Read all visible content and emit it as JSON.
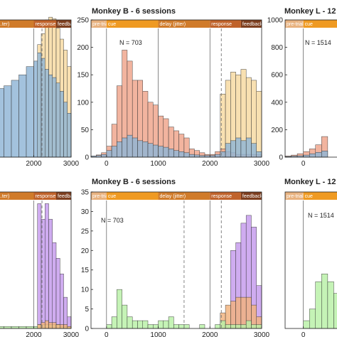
{
  "colors": {
    "pretrial": "#e8b27f",
    "cue": "#ef9a22",
    "delay": "#d07b2a",
    "response": "#c0632b",
    "feedback": "#7e3f1f",
    "salmon": "#efa48a",
    "yellow": "#f6d9a0",
    "blue": "#8fb4d6",
    "green": "#b8f0a6",
    "purple": "#c49aed",
    "orange": "#f2b27c"
  },
  "icons": [
    "dashed-line-marker"
  ],
  "chart_data": [
    {
      "type": "bar",
      "panel": "top-left",
      "title": "",
      "epoch_labels": [
        "...ter)",
        "response",
        "feedback"
      ],
      "xticks": [
        2000,
        3000
      ],
      "xlim": [
        1000,
        3000
      ],
      "ylim": [
        0,
        250
      ],
      "x_edges": [
        1000,
        1200,
        1400,
        1600,
        1800,
        2000,
        2100,
        2200,
        2300,
        2400,
        2500,
        2600,
        2700,
        2800,
        2900,
        3000
      ],
      "series": [
        {
          "color": "yellow",
          "values": [
            0,
            0,
            0,
            0,
            0,
            0,
            205,
            225,
            250,
            255,
            252,
            235,
            215,
            195,
            165
          ]
        },
        {
          "color": "blue",
          "values": [
            125,
            130,
            140,
            150,
            165,
            175,
            190,
            180,
            160,
            150,
            145,
            135,
            120,
            100,
            80
          ]
        }
      ],
      "annotations": []
    },
    {
      "type": "bar",
      "panel": "top-middle",
      "title": "Monkey B - 6 sessions",
      "epoch_labels": [
        "pre-trial",
        "cue",
        "delay (jitter)",
        "response",
        "feedback"
      ],
      "xticks": [
        0,
        1000,
        2000,
        3000
      ],
      "xlim": [
        -300,
        3000
      ],
      "yticks": [
        0,
        50,
        100,
        150,
        200,
        250
      ],
      "ylim": [
        0,
        250
      ],
      "x_edges": [
        -300,
        -200,
        -100,
        0,
        100,
        200,
        300,
        400,
        500,
        600,
        700,
        800,
        900,
        1000,
        1100,
        1200,
        1300,
        1400,
        1500,
        1600,
        1700,
        1800,
        1900,
        2000,
        2100,
        2200,
        2300,
        2400,
        2500,
        2600,
        2700,
        2800,
        2900,
        3000
      ],
      "series": [
        {
          "color": "yellow",
          "values": [
            0,
            0,
            0,
            0,
            0,
            0,
            0,
            0,
            0,
            0,
            0,
            0,
            0,
            0,
            0,
            0,
            0,
            0,
            0,
            0,
            0,
            0,
            0,
            0,
            0,
            115,
            140,
            155,
            150,
            160,
            145,
            140,
            120
          ]
        },
        {
          "color": "salmon",
          "values": [
            2,
            4,
            8,
            20,
            60,
            130,
            195,
            175,
            140,
            140,
            120,
            100,
            95,
            75,
            70,
            55,
            48,
            42,
            35,
            15,
            12,
            8,
            5,
            5,
            10,
            15,
            10,
            8,
            5,
            5,
            5,
            5,
            5
          ]
        },
        {
          "color": "blue",
          "values": [
            2,
            3,
            5,
            12,
            20,
            28,
            35,
            40,
            35,
            30,
            28,
            25,
            22,
            20,
            18,
            15,
            12,
            10,
            8,
            5,
            4,
            3,
            3,
            3,
            5,
            10,
            25,
            30,
            35,
            30,
            35,
            25,
            10
          ]
        }
      ],
      "annotations": [
        "N = 703"
      ]
    },
    {
      "type": "bar",
      "panel": "top-right",
      "title": "Monkey L - 12",
      "epoch_labels": [
        "pre-trial",
        "cue"
      ],
      "xticks": [
        0
      ],
      "xlim": [
        -300,
        600
      ],
      "yticks": [
        0,
        200,
        400,
        600,
        800,
        1000
      ],
      "ylim": [
        0,
        1000
      ],
      "x_edges": [
        -300,
        -200,
        -100,
        0,
        100,
        200,
        300,
        400,
        500,
        600
      ],
      "series": [
        {
          "color": "salmon",
          "values": [
            8,
            15,
            25,
            40,
            60,
            90,
            150,
            0,
            0
          ]
        },
        {
          "color": "blue",
          "values": [
            5,
            8,
            10,
            15,
            25,
            35,
            45,
            0,
            0
          ]
        }
      ],
      "annotations": [
        "N = 1514"
      ]
    },
    {
      "type": "bar",
      "panel": "bottom-left",
      "title": "",
      "epoch_labels": [
        "...ter)",
        "response",
        "feedback"
      ],
      "xticks": [
        2000,
        3000
      ],
      "xlim": [
        1000,
        3000
      ],
      "ylim": [
        0,
        35
      ],
      "x_edges": [
        1000,
        1200,
        1400,
        1600,
        1800,
        2000,
        2100,
        2200,
        2300,
        2400,
        2500,
        2600,
        2700,
        2800,
        2900,
        3000
      ],
      "series": [
        {
          "color": "purple",
          "values": [
            0,
            0,
            0,
            0,
            0,
            0,
            32,
            28,
            32,
            28,
            22,
            18,
            14,
            8,
            3
          ]
        },
        {
          "color": "green",
          "values": [
            0.5,
            0.5,
            0.5,
            0.5,
            0.5,
            0.5,
            1,
            1,
            1,
            1,
            1,
            1,
            0.5,
            0.5,
            0.5
          ]
        },
        {
          "color": "orange",
          "values": [
            0,
            0,
            0,
            0,
            0,
            0,
            1,
            1.5,
            2,
            1.5,
            1.5,
            1,
            1,
            1,
            0.5
          ]
        }
      ],
      "annotations": []
    },
    {
      "type": "bar",
      "panel": "bottom-middle",
      "title": "Monkey B - 6 sessions",
      "epoch_labels": [
        "pre-trial",
        "cue",
        "delay (jitter)",
        "response",
        "feedback"
      ],
      "xticks": [
        0,
        1000,
        2000,
        3000
      ],
      "xlim": [
        -300,
        3000
      ],
      "yticks": [
        0,
        5,
        10,
        15,
        20,
        25,
        30,
        35
      ],
      "ylim": [
        0,
        35
      ],
      "x_edges": [
        -300,
        -200,
        -100,
        0,
        100,
        200,
        300,
        400,
        500,
        600,
        700,
        800,
        900,
        1000,
        1100,
        1200,
        1300,
        1400,
        1500,
        1600,
        1700,
        1800,
        1900,
        2000,
        2100,
        2200,
        2300,
        2400,
        2500,
        2600,
        2700,
        2800,
        2900,
        3000
      ],
      "series": [
        {
          "color": "purple",
          "values": [
            0,
            0,
            0,
            0,
            0,
            0,
            0,
            0,
            0,
            0,
            0,
            0,
            0,
            0,
            0,
            0,
            0,
            0,
            0,
            0,
            0,
            0,
            0,
            0,
            0,
            0,
            0,
            20,
            22,
            27,
            29,
            26,
            11
          ]
        },
        {
          "color": "orange",
          "values": [
            0,
            0,
            0,
            0,
            0,
            0,
            0,
            0,
            0,
            0,
            0,
            0,
            0,
            0,
            0,
            0,
            0,
            0,
            0,
            0,
            0,
            0,
            0,
            0,
            0,
            4,
            6,
            7,
            8,
            8,
            8,
            6,
            3
          ]
        },
        {
          "color": "green",
          "values": [
            0,
            0,
            0,
            1,
            3,
            10,
            6,
            3,
            2,
            2,
            2,
            1,
            1,
            2,
            2,
            3,
            1,
            1,
            1,
            0,
            0,
            1,
            0,
            0,
            1,
            2,
            1,
            1,
            1,
            1,
            2,
            1,
            1
          ]
        }
      ],
      "annotations": [
        "N = 703"
      ]
    },
    {
      "type": "bar",
      "panel": "bottom-right",
      "title": "Monkey L - 12",
      "epoch_labels": [
        "pre-trial",
        "cue"
      ],
      "xticks": [
        0
      ],
      "xlim": [
        -300,
        600
      ],
      "ylim": [
        0,
        35
      ],
      "x_edges": [
        -300,
        -200,
        -100,
        0,
        100,
        200,
        300,
        400,
        500,
        600
      ],
      "series": [
        {
          "color": "green",
          "values": [
            0,
            0,
            0,
            2,
            5,
            12,
            14,
            12,
            9
          ]
        }
      ],
      "annotations": [
        "N = 1514"
      ]
    }
  ]
}
